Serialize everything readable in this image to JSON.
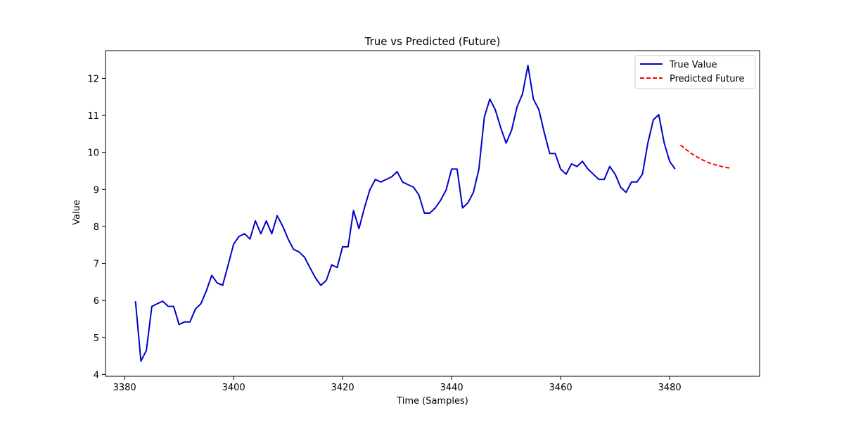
{
  "chart_data": {
    "type": "line",
    "title": "True vs Predicted (Future)",
    "xlabel": "Time (Samples)",
    "ylabel": "Value",
    "xlim": [
      3376.5,
      3496.5
    ],
    "ylim": [
      3.95,
      12.75
    ],
    "xticks": [
      3380,
      3400,
      3420,
      3440,
      3460,
      3480
    ],
    "yticks": [
      4,
      5,
      6,
      7,
      8,
      9,
      10,
      11,
      12
    ],
    "grid": false,
    "legend_position": "upper right",
    "series": [
      {
        "name": "True Value",
        "color": "#0000cc",
        "style": "solid",
        "x": [
          3382,
          3383,
          3384,
          3385,
          3386,
          3387,
          3388,
          3389,
          3390,
          3391,
          3392,
          3393,
          3394,
          3395,
          3396,
          3397,
          3398,
          3399,
          3400,
          3401,
          3402,
          3403,
          3404,
          3405,
          3406,
          3407,
          3408,
          3409,
          3410,
          3411,
          3412,
          3413,
          3414,
          3415,
          3416,
          3417,
          3418,
          3419,
          3420,
          3421,
          3422,
          3423,
          3424,
          3425,
          3426,
          3427,
          3428,
          3429,
          3430,
          3431,
          3432,
          3433,
          3434,
          3435,
          3436,
          3437,
          3438,
          3439,
          3440,
          3441,
          3442,
          3443,
          3444,
          3445,
          3446,
          3447,
          3448,
          3449,
          3450,
          3451,
          3452,
          3453,
          3454,
          3455,
          3456,
          3457,
          3458,
          3459,
          3460,
          3461,
          3462,
          3463,
          3464,
          3465,
          3466,
          3467,
          3468,
          3469,
          3470,
          3471,
          3472,
          3473,
          3474,
          3475,
          3476,
          3477,
          3478,
          3479,
          3480,
          3481
        ],
        "y": [
          5.98,
          4.36,
          4.65,
          5.84,
          5.91,
          5.98,
          5.84,
          5.84,
          5.35,
          5.42,
          5.42,
          5.77,
          5.91,
          6.26,
          6.68,
          6.47,
          6.41,
          6.96,
          7.52,
          7.73,
          7.8,
          7.66,
          8.15,
          7.8,
          8.15,
          7.8,
          8.29,
          8.01,
          7.66,
          7.38,
          7.31,
          7.17,
          6.89,
          6.61,
          6.41,
          6.54,
          6.96,
          6.89,
          7.45,
          7.45,
          8.43,
          7.94,
          8.5,
          8.99,
          9.27,
          9.2,
          9.27,
          9.34,
          9.48,
          9.2,
          9.13,
          9.06,
          8.85,
          8.36,
          8.36,
          8.5,
          8.71,
          8.99,
          9.55,
          9.55,
          8.5,
          8.64,
          8.92,
          9.55,
          10.95,
          11.44,
          11.16,
          10.67,
          10.25,
          10.6,
          11.23,
          11.58,
          12.35,
          11.44,
          11.16,
          10.53,
          9.97,
          9.97,
          9.55,
          9.41,
          9.69,
          9.62,
          9.76,
          9.55,
          9.41,
          9.27,
          9.27,
          9.62,
          9.41,
          9.06,
          8.92,
          9.2,
          9.2,
          9.41,
          10.25,
          10.88,
          11.02,
          10.25,
          9.76,
          9.55
        ]
      },
      {
        "name": "Predicted Future",
        "color": "#ff0000",
        "style": "dashed",
        "x": [
          3482,
          3483,
          3484,
          3485,
          3486,
          3487,
          3488,
          3489,
          3490,
          3491
        ],
        "y": [
          10.2,
          10.08,
          9.97,
          9.88,
          9.8,
          9.73,
          9.68,
          9.64,
          9.6,
          9.58
        ]
      }
    ]
  }
}
